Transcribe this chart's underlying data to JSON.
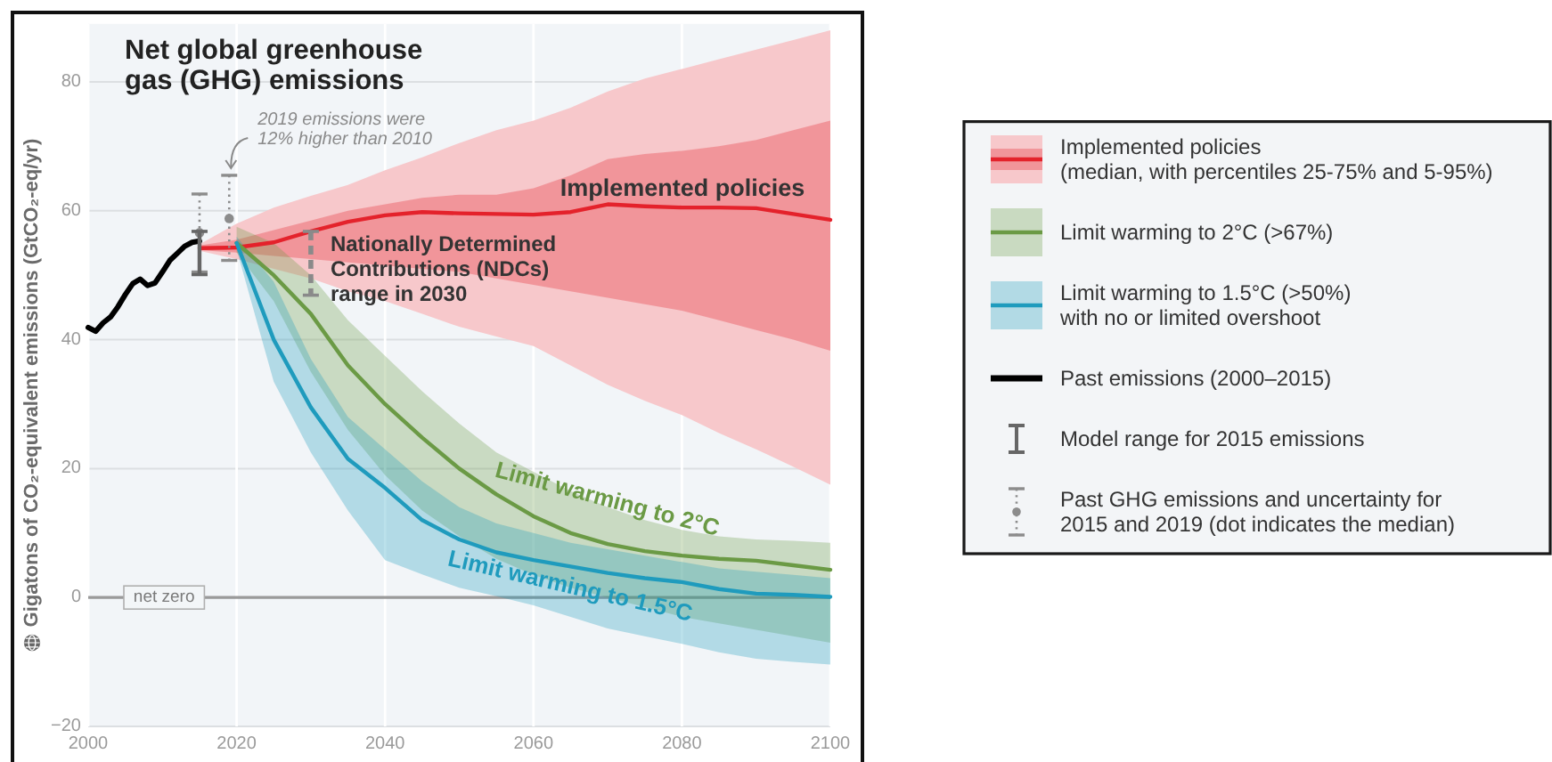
{
  "chart_data": {
    "type": "line",
    "title": "Net global greenhouse\ngas (GHG) emissions",
    "ylabel": "Gigatons of CO₂-equivalent emissions (GtCO₂-eq/yr)",
    "xlim": [
      2000,
      2100
    ],
    "xticks": [
      2000,
      2020,
      2040,
      2060,
      2080,
      2100
    ],
    "ylim": [
      -20,
      89
    ],
    "yticks": [
      {
        "value": -20,
        "label": "−20"
      },
      0,
      20,
      40,
      60,
      80
    ],
    "grid": true,
    "legend": "right",
    "ref_lines": [
      {
        "axis": "y",
        "value": 0,
        "label": "net zero",
        "color": "#9a9a9a"
      }
    ],
    "annotations": [
      {
        "text": "2019 emissions were\n12% higher than 2010",
        "x": 2019,
        "y": 65.5
      },
      "Implemented policies",
      {
        "text": "Limit warming to 2°C",
        "x": 2070,
        "y": 15.5
      },
      {
        "text": "Limit warming to 1.5°C",
        "x": 2065,
        "y": 2
      }
    ],
    "series": [
      {
        "name": "Implemented policies\n(median, with percentiles 25-75% and 5-95%)",
        "color": "#e4222b",
        "x": [
          2015,
          2020,
          2025,
          2030,
          2035,
          2040,
          2045,
          2050,
          2055,
          2060,
          2065,
          2070,
          2075,
          2080,
          2085,
          2090,
          2095,
          2100
        ],
        "values": [
          54.2,
          54.3,
          55.1,
          56.8,
          58.3,
          59.3,
          59.8,
          59.6,
          59.5,
          59.4,
          59.8,
          61.0,
          60.7,
          60.5,
          60.5,
          60.4,
          59.5,
          58.6
        ],
        "lower": [
          53.9,
          53.5,
          53.0,
          52.5,
          52.0,
          51.5,
          51.0,
          50.5,
          49.5,
          48.5,
          47.5,
          46.5,
          45.5,
          44.5,
          43.0,
          41.5,
          40.0,
          38.3
        ],
        "upper": [
          54.6,
          55.5,
          57.0,
          58.5,
          60.0,
          61.0,
          62.0,
          62.5,
          62.5,
          63.5,
          65.5,
          68.0,
          68.8,
          69.3,
          70.0,
          71.0,
          72.5,
          74.0
        ]
      },
      {
        "color": "#f7c8cb",
        "x": [
          2015,
          2020,
          2025,
          2030,
          2035,
          2040,
          2045,
          2050,
          2055,
          2060,
          2065,
          2070,
          2075,
          2080,
          2085,
          2090,
          2095,
          2100
        ],
        "values": [
          null,
          null,
          null,
          null,
          null,
          null,
          null,
          null,
          null,
          null,
          null,
          null,
          null,
          null,
          null,
          null,
          null,
          null
        ],
        "lower": [
          53.8,
          52.5,
          51.0,
          49.5,
          47.5,
          46.0,
          44.0,
          42.0,
          40.5,
          39.0,
          36.0,
          33.0,
          30.5,
          28.3,
          25.5,
          23.0,
          20.3,
          17.5
        ],
        "upper": [
          54.8,
          58.0,
          60.5,
          62.3,
          64.0,
          66.3,
          68.3,
          70.5,
          72.5,
          74.0,
          76.0,
          78.5,
          80.5,
          82.0,
          83.5,
          85.0,
          86.5,
          88.0
        ]
      },
      {
        "name": "Limit warming to 2°C (>67%)",
        "color": "#6b9a45",
        "x": [
          2020,
          2025,
          2030,
          2035,
          2040,
          2045,
          2050,
          2055,
          2060,
          2065,
          2070,
          2075,
          2080,
          2085,
          2090,
          2095,
          2100
        ],
        "values": [
          55.0,
          50.0,
          44.0,
          36.0,
          30.0,
          24.8,
          20.0,
          16.0,
          12.6,
          10.0,
          8.3,
          7.2,
          6.5,
          6.0,
          5.7,
          5.0,
          4.3
        ],
        "lower": [
          53.5,
          46.0,
          35.0,
          26.0,
          19.0,
          13.5,
          9.5,
          6.0,
          3.5,
          1.5,
          0.0,
          -1.5,
          -3.0,
          -4.0,
          -5.0,
          -6.0,
          -7.0
        ],
        "upper": [
          57.5,
          55.0,
          50.0,
          43.0,
          37.5,
          32.0,
          27.0,
          22.5,
          19.5,
          16.5,
          14.0,
          12.0,
          10.5,
          9.5,
          9.0,
          8.8,
          8.5
        ]
      },
      {
        "name": "Limit warming to 1.5°C (>50%)\nwith no or limited overshoot",
        "color": "#1f9bbd",
        "x": [
          2020,
          2025,
          2030,
          2035,
          2040,
          2045,
          2050,
          2055,
          2060,
          2065,
          2070,
          2075,
          2080,
          2085,
          2090,
          2095,
          2100
        ],
        "values": [
          55.0,
          40.0,
          29.5,
          21.5,
          17.0,
          12.0,
          9.0,
          7.0,
          5.8,
          4.8,
          3.8,
          3.0,
          2.4,
          1.3,
          0.6,
          0.4,
          0.1
        ],
        "lower": [
          54.0,
          33.5,
          22.5,
          13.5,
          5.8,
          3.6,
          1.5,
          0.2,
          -1.2,
          -3.0,
          -4.8,
          -6.0,
          -7.2,
          -8.5,
          -9.5,
          -10.0,
          -10.4
        ],
        "upper": [
          56.0,
          49.0,
          37.0,
          28.0,
          23.0,
          18.0,
          14.0,
          11.5,
          10.0,
          8.5,
          7.5,
          6.5,
          5.5,
          4.5,
          4.0,
          3.5,
          3.0
        ]
      },
      {
        "name": "Past emissions (2000–2015)",
        "color": "#000000",
        "x": [
          2000,
          2001,
          2002,
          2003,
          2004,
          2005,
          2006,
          2007,
          2008,
          2009,
          2010,
          2011,
          2012,
          2013,
          2014,
          2015
        ],
        "values": [
          41.9,
          41.3,
          42.6,
          43.5,
          45.1,
          47.0,
          48.7,
          49.4,
          48.4,
          48.8,
          50.5,
          52.3,
          53.4,
          54.5,
          55.1,
          55.3
        ]
      },
      {
        "name": "Model range for 2015 emissions",
        "type": "bar",
        "color": "#666666",
        "x": [
          2015
        ],
        "base": [
          50.1
        ],
        "values": [
          6.7
        ]
      },
      {
        "name": "Past GHG emissions and uncertainty for\n2015 and 2019 (dot indicates the median)",
        "type": "scatter",
        "marker": "circle",
        "line_style": "dotted",
        "color": "#8c8c8c",
        "x": [
          2015,
          2019
        ],
        "values": [
          56.6,
          58.8
        ],
        "errors": [
          [
            50.5,
            62.6
          ],
          [
            52.3,
            65.5
          ]
        ]
      },
      {
        "name": "Nationally Determined\nContributions (NDCs)\nrange in 2030",
        "type": "bar",
        "line_style": "dashed",
        "color": "#8a8a8a",
        "x": [
          2030
        ],
        "base": [
          46.9
        ],
        "values": [
          9.9
        ]
      }
    ]
  }
}
